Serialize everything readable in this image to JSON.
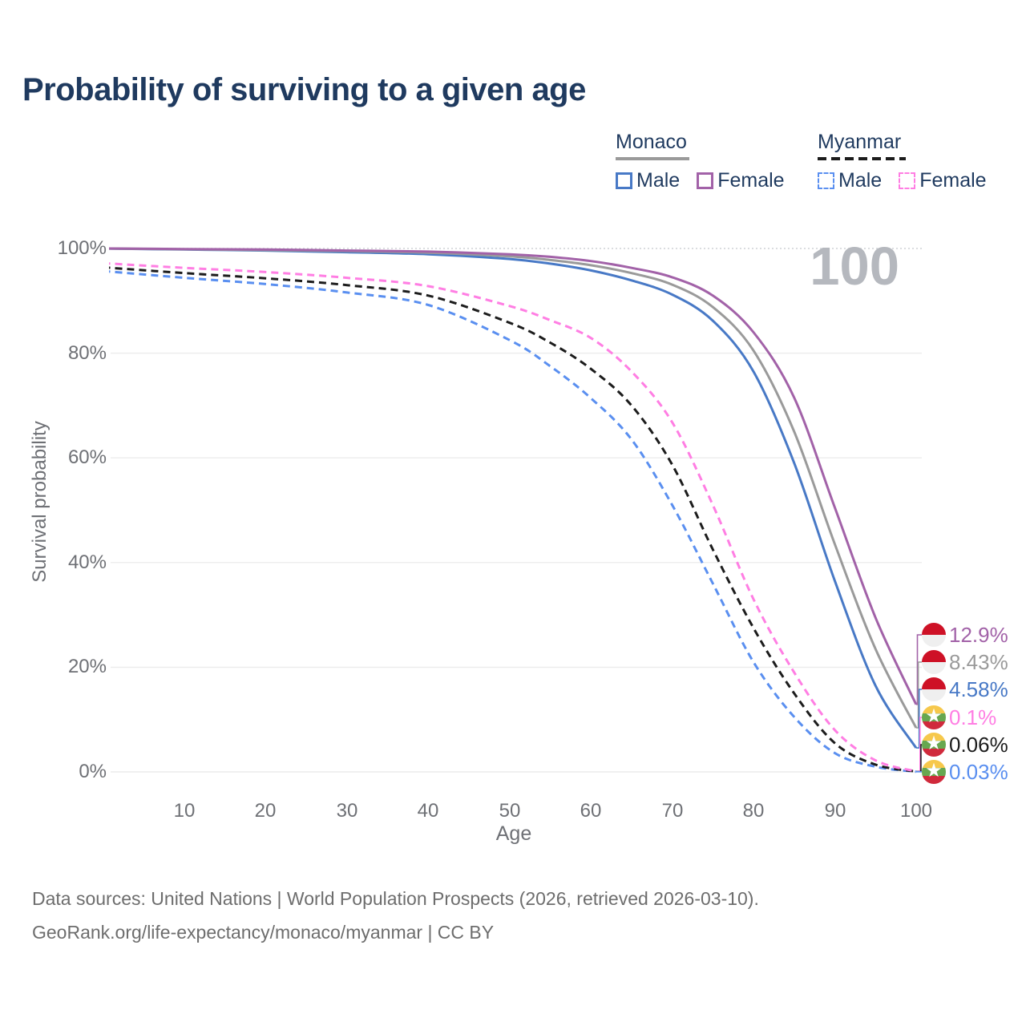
{
  "title": "Probability of surviving to a given age",
  "age_counter": "100",
  "legend": {
    "monaco": {
      "label": "Monaco",
      "male": "Male",
      "female": "Female"
    },
    "myanmar": {
      "label": "Myanmar",
      "male": "Male",
      "female": "Female"
    }
  },
  "axes": {
    "y_label": "Survival probability",
    "x_label": "Age",
    "y_ticks": [
      "100%",
      "80%",
      "60%",
      "40%",
      "20%",
      "0%"
    ],
    "x_ticks": [
      "10",
      "20",
      "30",
      "40",
      "50",
      "60",
      "70",
      "80",
      "90",
      "100"
    ]
  },
  "end_labels": [
    {
      "value": "12.9%",
      "flag": "monaco",
      "series": "Monaco Female",
      "color": "#a262a8"
    },
    {
      "value": "8.43%",
      "flag": "monaco",
      "series": "Monaco Total",
      "color": "#9a9a9a"
    },
    {
      "value": "4.58%",
      "flag": "monaco",
      "series": "Monaco Male",
      "color": "#4879c6"
    },
    {
      "value": "0.1%",
      "flag": "myanmar",
      "series": "Myanmar Female",
      "color": "#ff7ee3"
    },
    {
      "value": "0.06%",
      "flag": "myanmar",
      "series": "Myanmar Total",
      "color": "#1c1c1c"
    },
    {
      "value": "0.03%",
      "flag": "myanmar",
      "series": "Myanmar Male",
      "color": "#5a8ff0"
    }
  ],
  "footer": {
    "line1": "Data sources: United Nations | World Population Prospects (2026, retrieved 2026-03-10).",
    "line2": "GeoRank.org/life-expectancy/monaco/myanmar | CC BY"
  },
  "colors": {
    "title_text": "#1f3a5f",
    "axis_text": "#6e7075",
    "grid": "#ececec",
    "grid_top_dotted": "#cfd2d6",
    "watermark": "#b5b8be"
  },
  "chart_data": {
    "type": "line",
    "title": "Probability of surviving to a given age",
    "xlabel": "Age",
    "ylabel": "Survival probability",
    "xlim": [
      0,
      100
    ],
    "ylim": [
      0,
      100
    ],
    "x_ticks": [
      10,
      20,
      30,
      40,
      50,
      60,
      70,
      80,
      90,
      100
    ],
    "y_ticks_percent": [
      0,
      20,
      40,
      60,
      80,
      100
    ],
    "grid": true,
    "legend_position": "top-right",
    "ages": [
      0,
      10,
      20,
      30,
      40,
      50,
      55,
      60,
      65,
      70,
      75,
      80,
      85,
      90,
      95,
      100
    ],
    "series": [
      {
        "name": "Monaco Female",
        "country": "Monaco",
        "sex": "Female",
        "style": "solid",
        "color": "#a262a8",
        "end_label": "12.9%",
        "values": [
          100,
          99.9,
          99.8,
          99.6,
          99.4,
          98.9,
          98.4,
          97.6,
          96.3,
          94.5,
          91.0,
          84.0,
          71.5,
          50.5,
          29.5,
          12.9
        ]
      },
      {
        "name": "Monaco Total",
        "country": "Monaco",
        "sex": "Both",
        "style": "solid",
        "color": "#9a9a9a",
        "end_label": "8.43%",
        "values": [
          100,
          99.85,
          99.7,
          99.5,
          99.2,
          98.5,
          97.8,
          96.8,
          95.3,
          93.1,
          88.8,
          80.5,
          65.0,
          43.5,
          23.5,
          8.43
        ]
      },
      {
        "name": "Monaco Male",
        "country": "Monaco",
        "sex": "Male",
        "style": "solid",
        "color": "#4879c6",
        "end_label": "4.58%",
        "values": [
          100,
          99.8,
          99.6,
          99.3,
          98.9,
          98.0,
          97.1,
          95.8,
          93.9,
          91.2,
          86.2,
          76.5,
          59.0,
          36.5,
          16.5,
          4.58
        ]
      },
      {
        "name": "Myanmar Female",
        "country": "Myanmar",
        "sex": "Female",
        "style": "dashed",
        "color": "#ff7ee3",
        "end_label": "0.1%",
        "values": [
          97.2,
          96.3,
          95.5,
          94.4,
          92.8,
          89.0,
          86.3,
          82.9,
          76.5,
          66.8,
          51.0,
          33.0,
          19.0,
          8.0,
          2.2,
          0.1
        ]
      },
      {
        "name": "Myanmar Total",
        "country": "Myanmar",
        "sex": "Both",
        "style": "dashed",
        "color": "#1c1c1c",
        "end_label": "0.06%",
        "values": [
          96.4,
          95.3,
          94.3,
          93.0,
          91.0,
          85.8,
          82.0,
          77.0,
          70.0,
          58.7,
          42.5,
          27.5,
          15.0,
          5.5,
          1.4,
          0.06
        ]
      },
      {
        "name": "Myanmar Male",
        "country": "Myanmar",
        "sex": "Male",
        "style": "dashed",
        "color": "#5a8ff0",
        "end_label": "0.03%",
        "values": [
          95.7,
          94.4,
          93.2,
          91.6,
          89.2,
          82.5,
          77.5,
          71.4,
          63.5,
          51.0,
          36.0,
          21.0,
          10.5,
          3.6,
          1.0,
          0.03
        ]
      }
    ]
  }
}
